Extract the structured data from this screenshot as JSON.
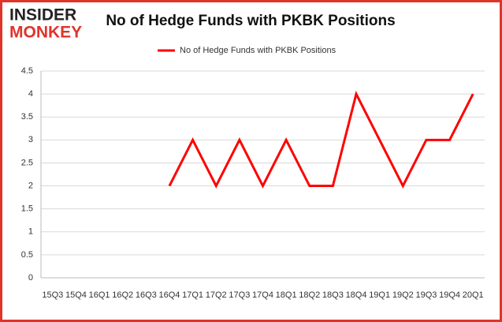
{
  "logo": {
    "top": "INSIDER",
    "bottom": "MONKEY"
  },
  "chart_data": {
    "type": "line",
    "title": "No of Hedge Funds with PKBK Positions",
    "categories": [
      "15Q3",
      "15Q4",
      "16Q1",
      "16Q2",
      "16Q3",
      "16Q4",
      "17Q1",
      "17Q2",
      "17Q3",
      "17Q4",
      "18Q1",
      "18Q2",
      "18Q3",
      "18Q4",
      "19Q1",
      "19Q2",
      "19Q3",
      "19Q4",
      "20Q1"
    ],
    "series": [
      {
        "name": "No of Hedge Funds with PKBK Positions",
        "color": "#ff0000",
        "values": [
          null,
          null,
          null,
          null,
          null,
          2,
          3,
          2,
          3,
          2,
          3,
          2,
          2,
          4,
          3,
          2,
          3,
          3,
          4
        ]
      }
    ],
    "ylim": [
      0,
      4.5
    ],
    "yticks": [
      0,
      0.5,
      1,
      1.5,
      2,
      2.5,
      3,
      3.5,
      4,
      4.5
    ],
    "grid": true,
    "legend": "top"
  }
}
